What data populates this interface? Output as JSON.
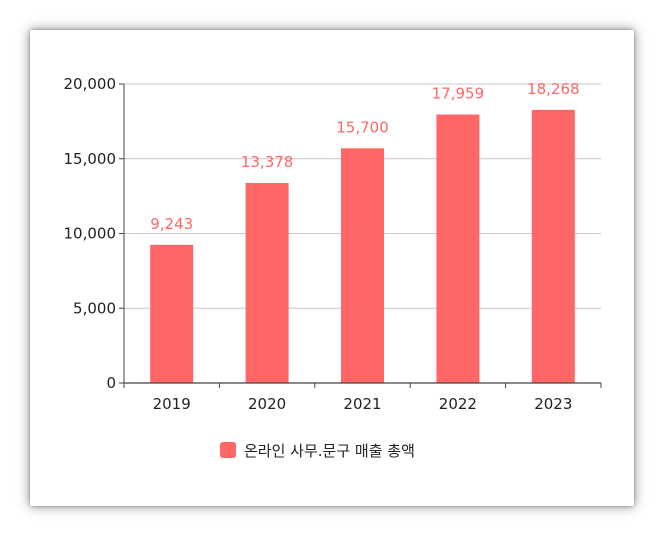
{
  "chart_data": {
    "type": "bar",
    "title": "",
    "xlabel": "",
    "ylabel": "",
    "categories": [
      "2019",
      "2020",
      "2021",
      "2022",
      "2023"
    ],
    "series": [
      {
        "name": "온라인 사무.문구 매출 총액",
        "values": [
          9243,
          13378,
          15700,
          17959,
          18268
        ],
        "labels": [
          "9,243",
          "13,378",
          "15,700",
          "17,959",
          "18,268"
        ]
      }
    ],
    "ylim": [
      0,
      20000
    ],
    "yticks": [
      0,
      5000,
      10000,
      15000,
      20000
    ],
    "ytick_labels": [
      "0",
      "5,000",
      "10,000",
      "15,000",
      "20,000"
    ],
    "grid": true,
    "legend_position": "bottom",
    "colors": {
      "bar": "#ff6666",
      "data_label": "#ff6666",
      "grid": "#c8c8c8",
      "axis": "#444444"
    }
  }
}
